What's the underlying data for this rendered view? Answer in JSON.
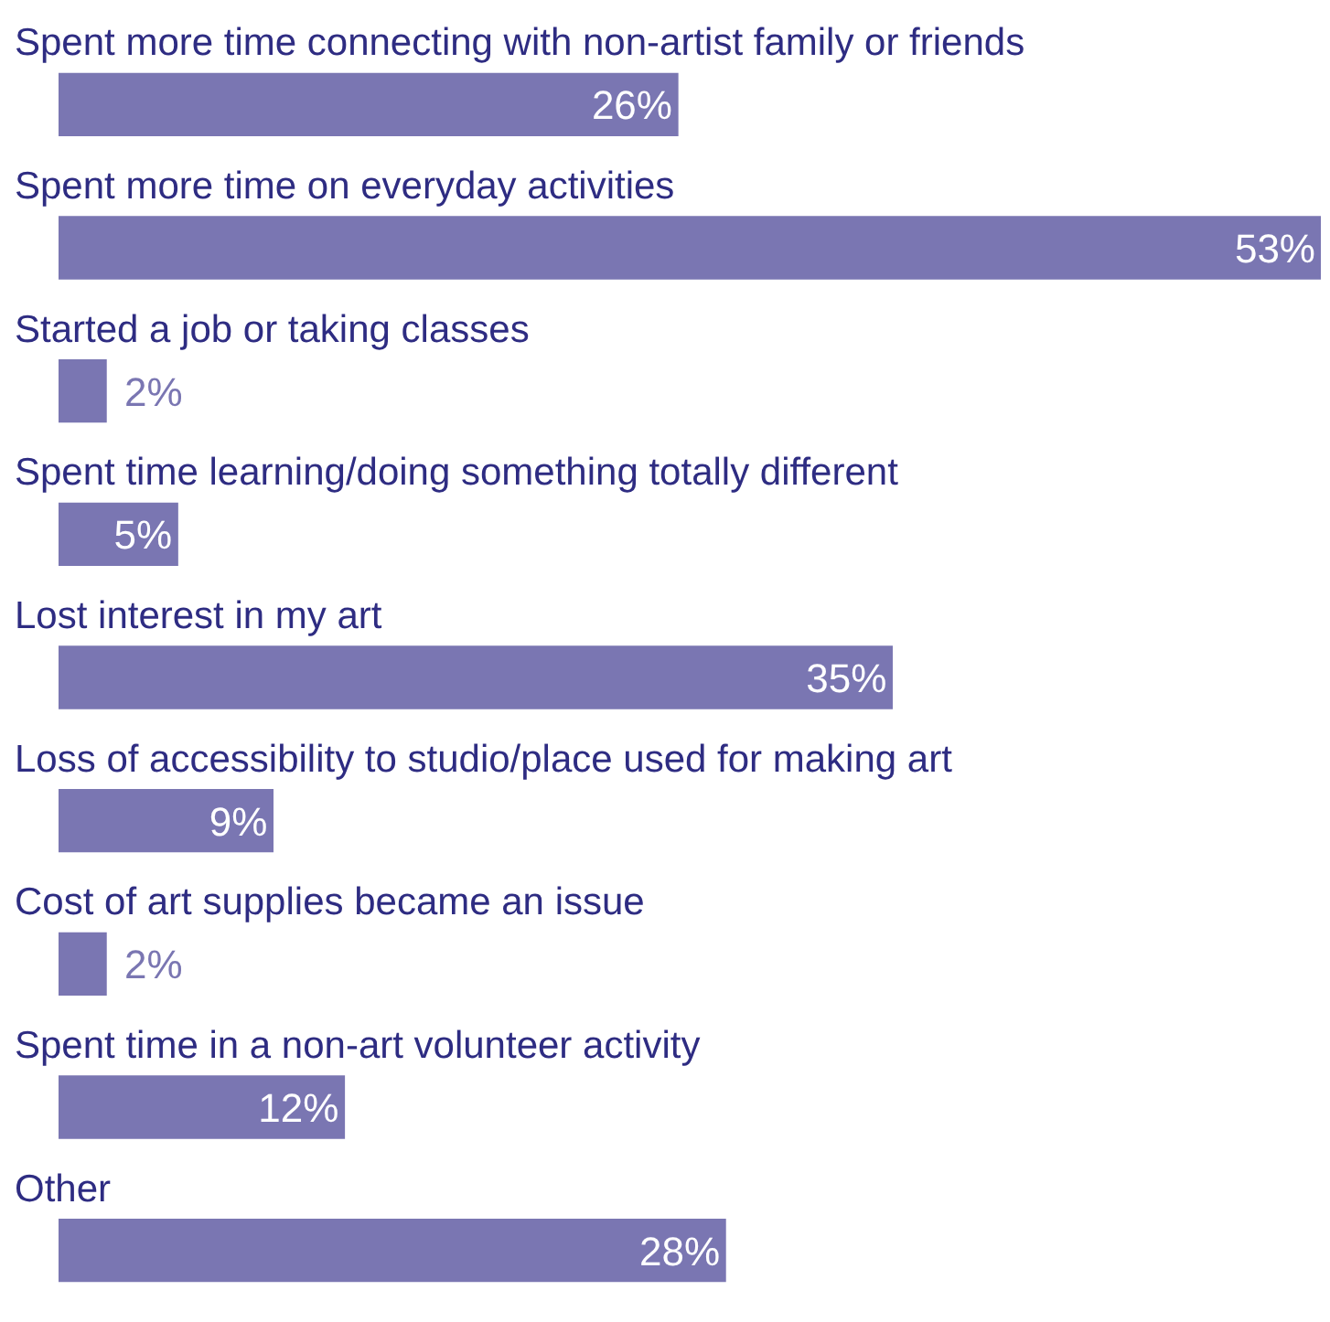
{
  "chart_data": {
    "type": "bar",
    "orientation": "horizontal",
    "categories": [
      "Spent more time connecting with non-artist family or friends",
      "Spent more time on everyday activities",
      "Started a job or taking classes",
      "Spent time learning/doing something totally different",
      "Lost interest in my art",
      "Loss of accessibility to studio/place used for making art",
      "Cost of art supplies became an issue",
      "Spent time in a non-art volunteer activity",
      "Other"
    ],
    "values": [
      26,
      53,
      2,
      5,
      35,
      9,
      2,
      12,
      28
    ],
    "value_labels": [
      "26%",
      "53%",
      "2%",
      "5%",
      "35%",
      "9%",
      "2%",
      "12%",
      "28%"
    ],
    "color": "#7a76b2"
  }
}
